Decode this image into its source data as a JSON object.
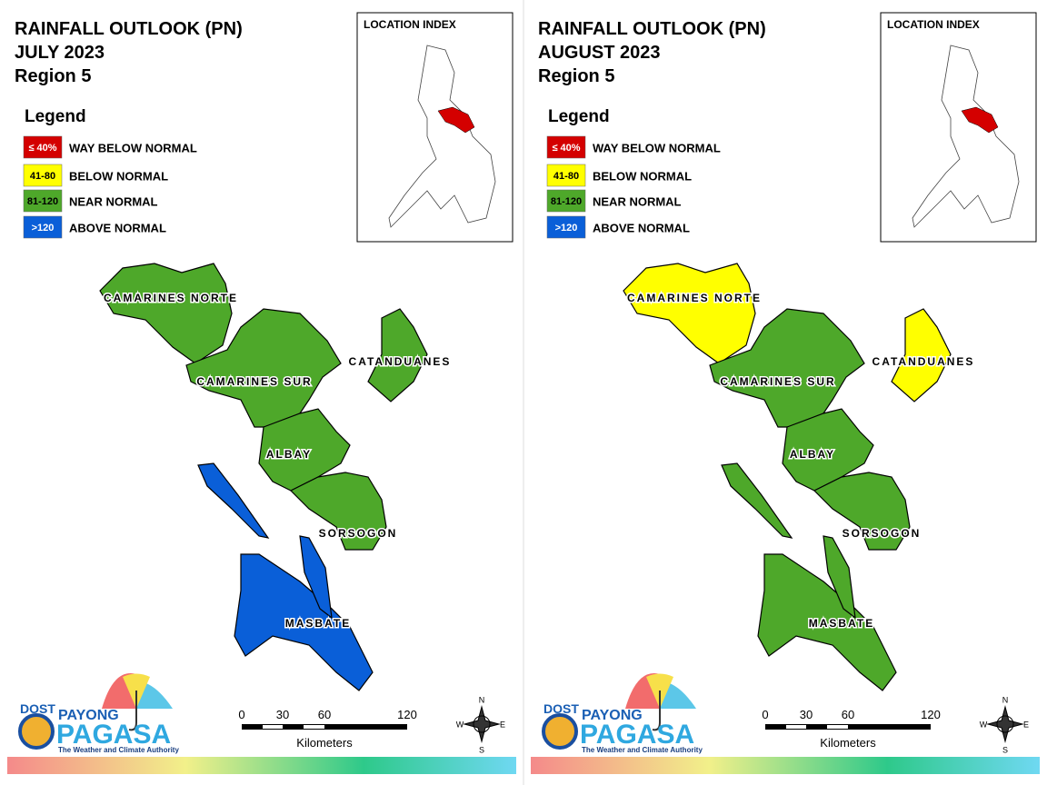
{
  "panels": [
    {
      "title": [
        "RAINFALL OUTLOOK (PN)",
        "JULY 2023",
        "Region 5"
      ],
      "legend": {
        "title": "Legend",
        "items": [
          {
            "code": "≤ 40%",
            "label": "WAY BELOW NORMAL",
            "color": "#d40000"
          },
          {
            "code": "41-80",
            "label": "BELOW NORMAL",
            "color": "#ffff00"
          },
          {
            "code": "81-120",
            "label": "NEAR NORMAL",
            "color": "#4ea82a"
          },
          {
            "code": ">120",
            "label": "ABOVE NORMAL",
            "color": "#0a5fd8"
          }
        ]
      },
      "location_index": "LOCATION INDEX",
      "provinces": [
        {
          "name": "CAMARINES NORTE",
          "color": "#4ea82a"
        },
        {
          "name": "CAMARINES SUR",
          "color": "#4ea82a"
        },
        {
          "name": "CATANDUANES",
          "color": "#4ea82a"
        },
        {
          "name": "ALBAY",
          "color": "#4ea82a"
        },
        {
          "name": "SORSOGON",
          "color": "#4ea82a"
        },
        {
          "name": "MASBATE",
          "color": "#0a5fd8"
        }
      ],
      "scale": {
        "ticks": [
          0,
          30,
          60,
          120
        ],
        "unit": "Kilometers"
      },
      "compass": {
        "n": "N",
        "e": "E",
        "s": "S",
        "w": "W"
      },
      "logo": {
        "dost": "DOST",
        "payong": "PAYONG",
        "pagasa": "PAGASA",
        "tagline": "The Weather and Climate Authority"
      }
    },
    {
      "title": [
        "RAINFALL OUTLOOK (PN)",
        "AUGUST 2023",
        "Region 5"
      ],
      "legend": {
        "title": "Legend",
        "items": [
          {
            "code": "≤ 40%",
            "label": "WAY BELOW NORMAL",
            "color": "#d40000"
          },
          {
            "code": "41-80",
            "label": "BELOW NORMAL",
            "color": "#ffff00"
          },
          {
            "code": "81-120",
            "label": "NEAR NORMAL",
            "color": "#4ea82a"
          },
          {
            "code": ">120",
            "label": "ABOVE NORMAL",
            "color": "#0a5fd8"
          }
        ]
      },
      "location_index": "LOCATION INDEX",
      "provinces": [
        {
          "name": "CAMARINES NORTE",
          "color": "#ffff00"
        },
        {
          "name": "CAMARINES SUR",
          "color": "#4ea82a"
        },
        {
          "name": "CATANDUANES",
          "color": "#ffff00"
        },
        {
          "name": "ALBAY",
          "color": "#4ea82a"
        },
        {
          "name": "SORSOGON",
          "color": "#4ea82a"
        },
        {
          "name": "MASBATE",
          "color": "#4ea82a"
        }
      ],
      "scale": {
        "ticks": [
          0,
          30,
          60,
          120
        ],
        "unit": "Kilometers"
      },
      "compass": {
        "n": "N",
        "e": "E",
        "s": "S",
        "w": "W"
      },
      "logo": {
        "dost": "DOST",
        "payong": "PAYONG",
        "pagasa": "PAGASA",
        "tagline": "The Weather and Climate Authority"
      }
    }
  ]
}
